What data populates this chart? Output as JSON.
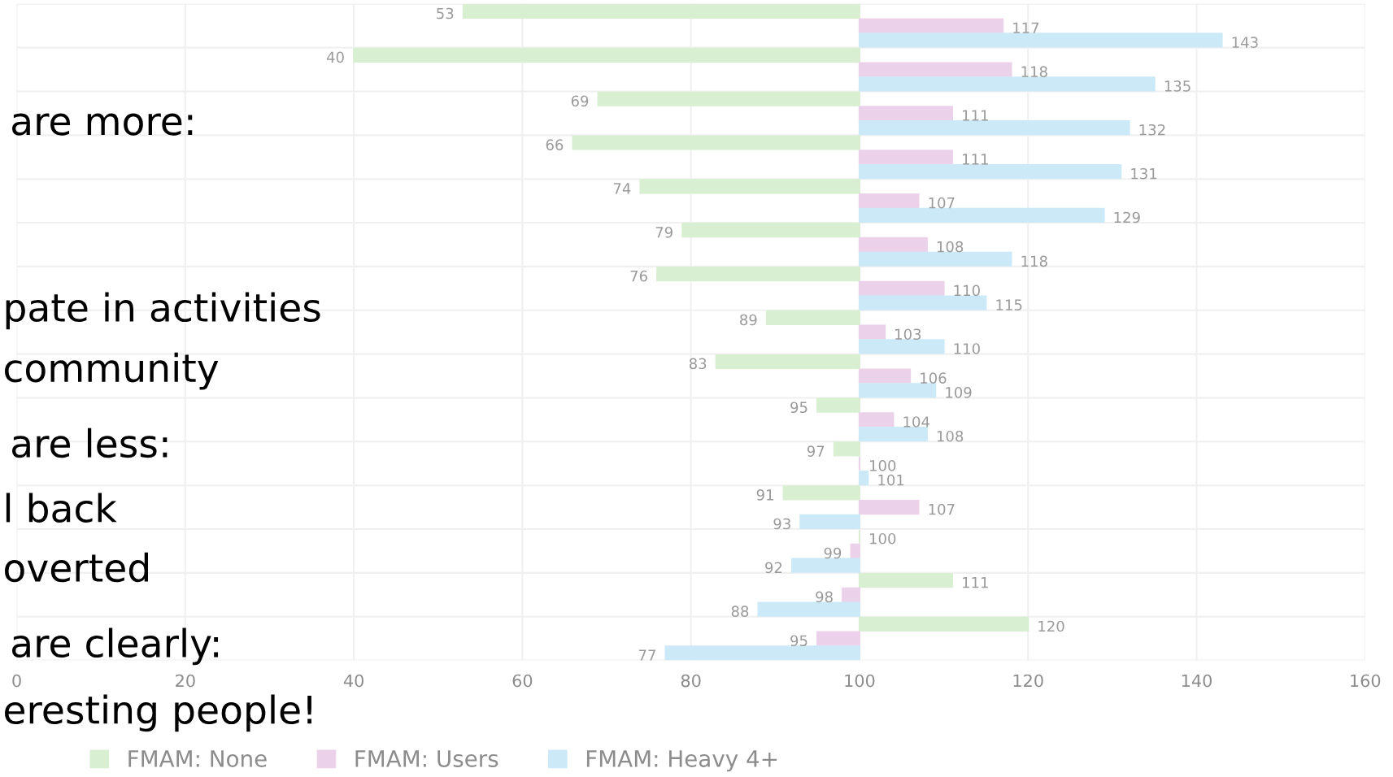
{
  "chart_data": {
    "type": "bar",
    "orientation": "horizontal",
    "categories": [
      null,
      null,
      null,
      null,
      null,
      null,
      null,
      null,
      null,
      null,
      null,
      null,
      null,
      null,
      null
    ],
    "series": [
      {
        "name": "FMAM: None",
        "color": "#d9efd2",
        "base": [
          100,
          100,
          100,
          100,
          100,
          100,
          100,
          100,
          100,
          100,
          100,
          100,
          100,
          100,
          100
        ],
        "values": [
          -47,
          -60,
          -31,
          -34,
          -26,
          -21,
          -24,
          -11,
          -17,
          -5,
          -3,
          -9,
          0,
          11,
          20
        ],
        "value_labels": [
          "53",
          "40",
          "69",
          "66",
          "74",
          "79",
          "76",
          "89",
          "83",
          "95",
          "97",
          "91",
          "100",
          "111",
          "120"
        ]
      },
      {
        "name": "FMAM: Users",
        "color": "#ebd1ea",
        "base": [
          100,
          100,
          100,
          100,
          100,
          100,
          100,
          100,
          100,
          100,
          100,
          100,
          100,
          100,
          100
        ],
        "values": [
          17,
          18,
          11,
          11,
          7,
          8,
          10,
          3,
          6,
          4,
          0,
          7,
          -1,
          -2,
          -5
        ],
        "value_labels": [
          "117",
          "118",
          "111",
          "111",
          "107",
          "108",
          "110",
          "103",
          "106",
          "104",
          "100",
          "107",
          "99",
          "98",
          "95"
        ]
      },
      {
        "name": "FMAM: Heavy 4+",
        "color": "#cbe9f7",
        "base": [
          100,
          100,
          100,
          100,
          100,
          100,
          100,
          100,
          100,
          100,
          100,
          100,
          100,
          100,
          100
        ],
        "values": [
          43,
          35,
          32,
          31,
          29,
          18,
          15,
          10,
          9,
          8,
          1,
          -7,
          -8,
          -12,
          -23
        ],
        "value_labels": [
          "143",
          "135",
          "132",
          "131",
          "129",
          "118",
          "115",
          "110",
          "109",
          "108",
          "101",
          "93",
          "92",
          "88",
          "77"
        ]
      }
    ],
    "xlim": [
      0,
      160
    ],
    "xticks": [
      0,
      20,
      40,
      60,
      80,
      100,
      120,
      140,
      160
    ],
    "grid": true,
    "legend": "bottom",
    "annotations": [
      "are more:",
      "pate in activities",
      "community",
      "are less:",
      "l back",
      "overted",
      "are clearly:",
      "eresting people!"
    ]
  }
}
